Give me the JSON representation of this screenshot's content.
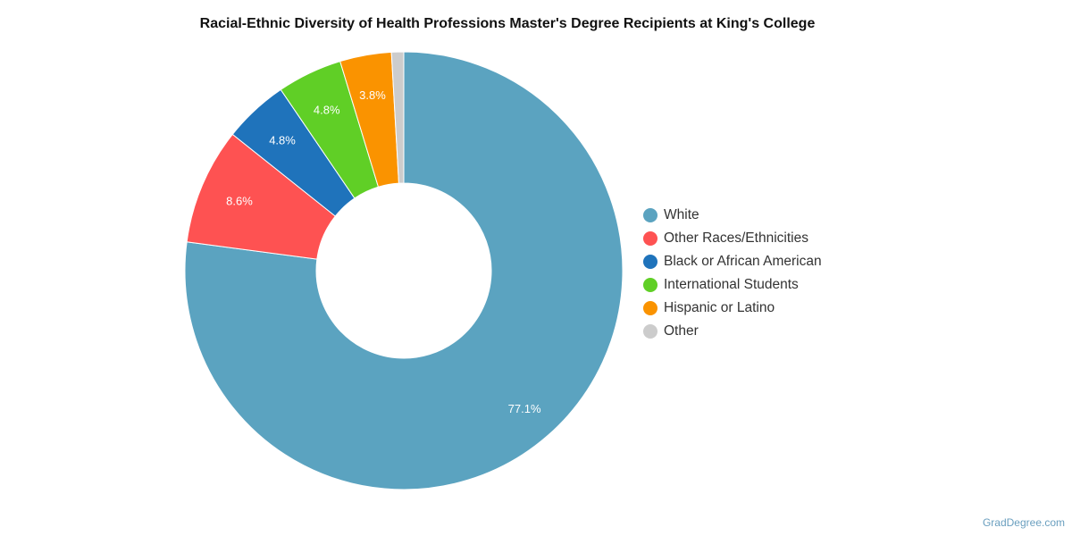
{
  "chart_data": {
    "type": "pie",
    "donut": true,
    "title": "Racial-Ethnic Diversity of Health Professions Master's Degree Recipients at King's College",
    "legend_position": "right",
    "slices": [
      {
        "label": "White",
        "value": 77.1,
        "display": "77.1%",
        "color": "#5ba3c0"
      },
      {
        "label": "Other Races/Ethnicities",
        "value": 8.6,
        "display": "8.6%",
        "color": "#fe5252"
      },
      {
        "label": "Black or African American",
        "value": 4.8,
        "display": "4.8%",
        "color": "#1f73bb"
      },
      {
        "label": "International Students",
        "value": 4.8,
        "display": "4.8%",
        "color": "#60cf26"
      },
      {
        "label": "Hispanic or Latino",
        "value": 3.8,
        "display": "3.8%",
        "color": "#fa9300"
      },
      {
        "label": "Other",
        "value": 0.9,
        "display": "",
        "color": "#cccccc"
      }
    ]
  },
  "credit": "GradDegree.com"
}
